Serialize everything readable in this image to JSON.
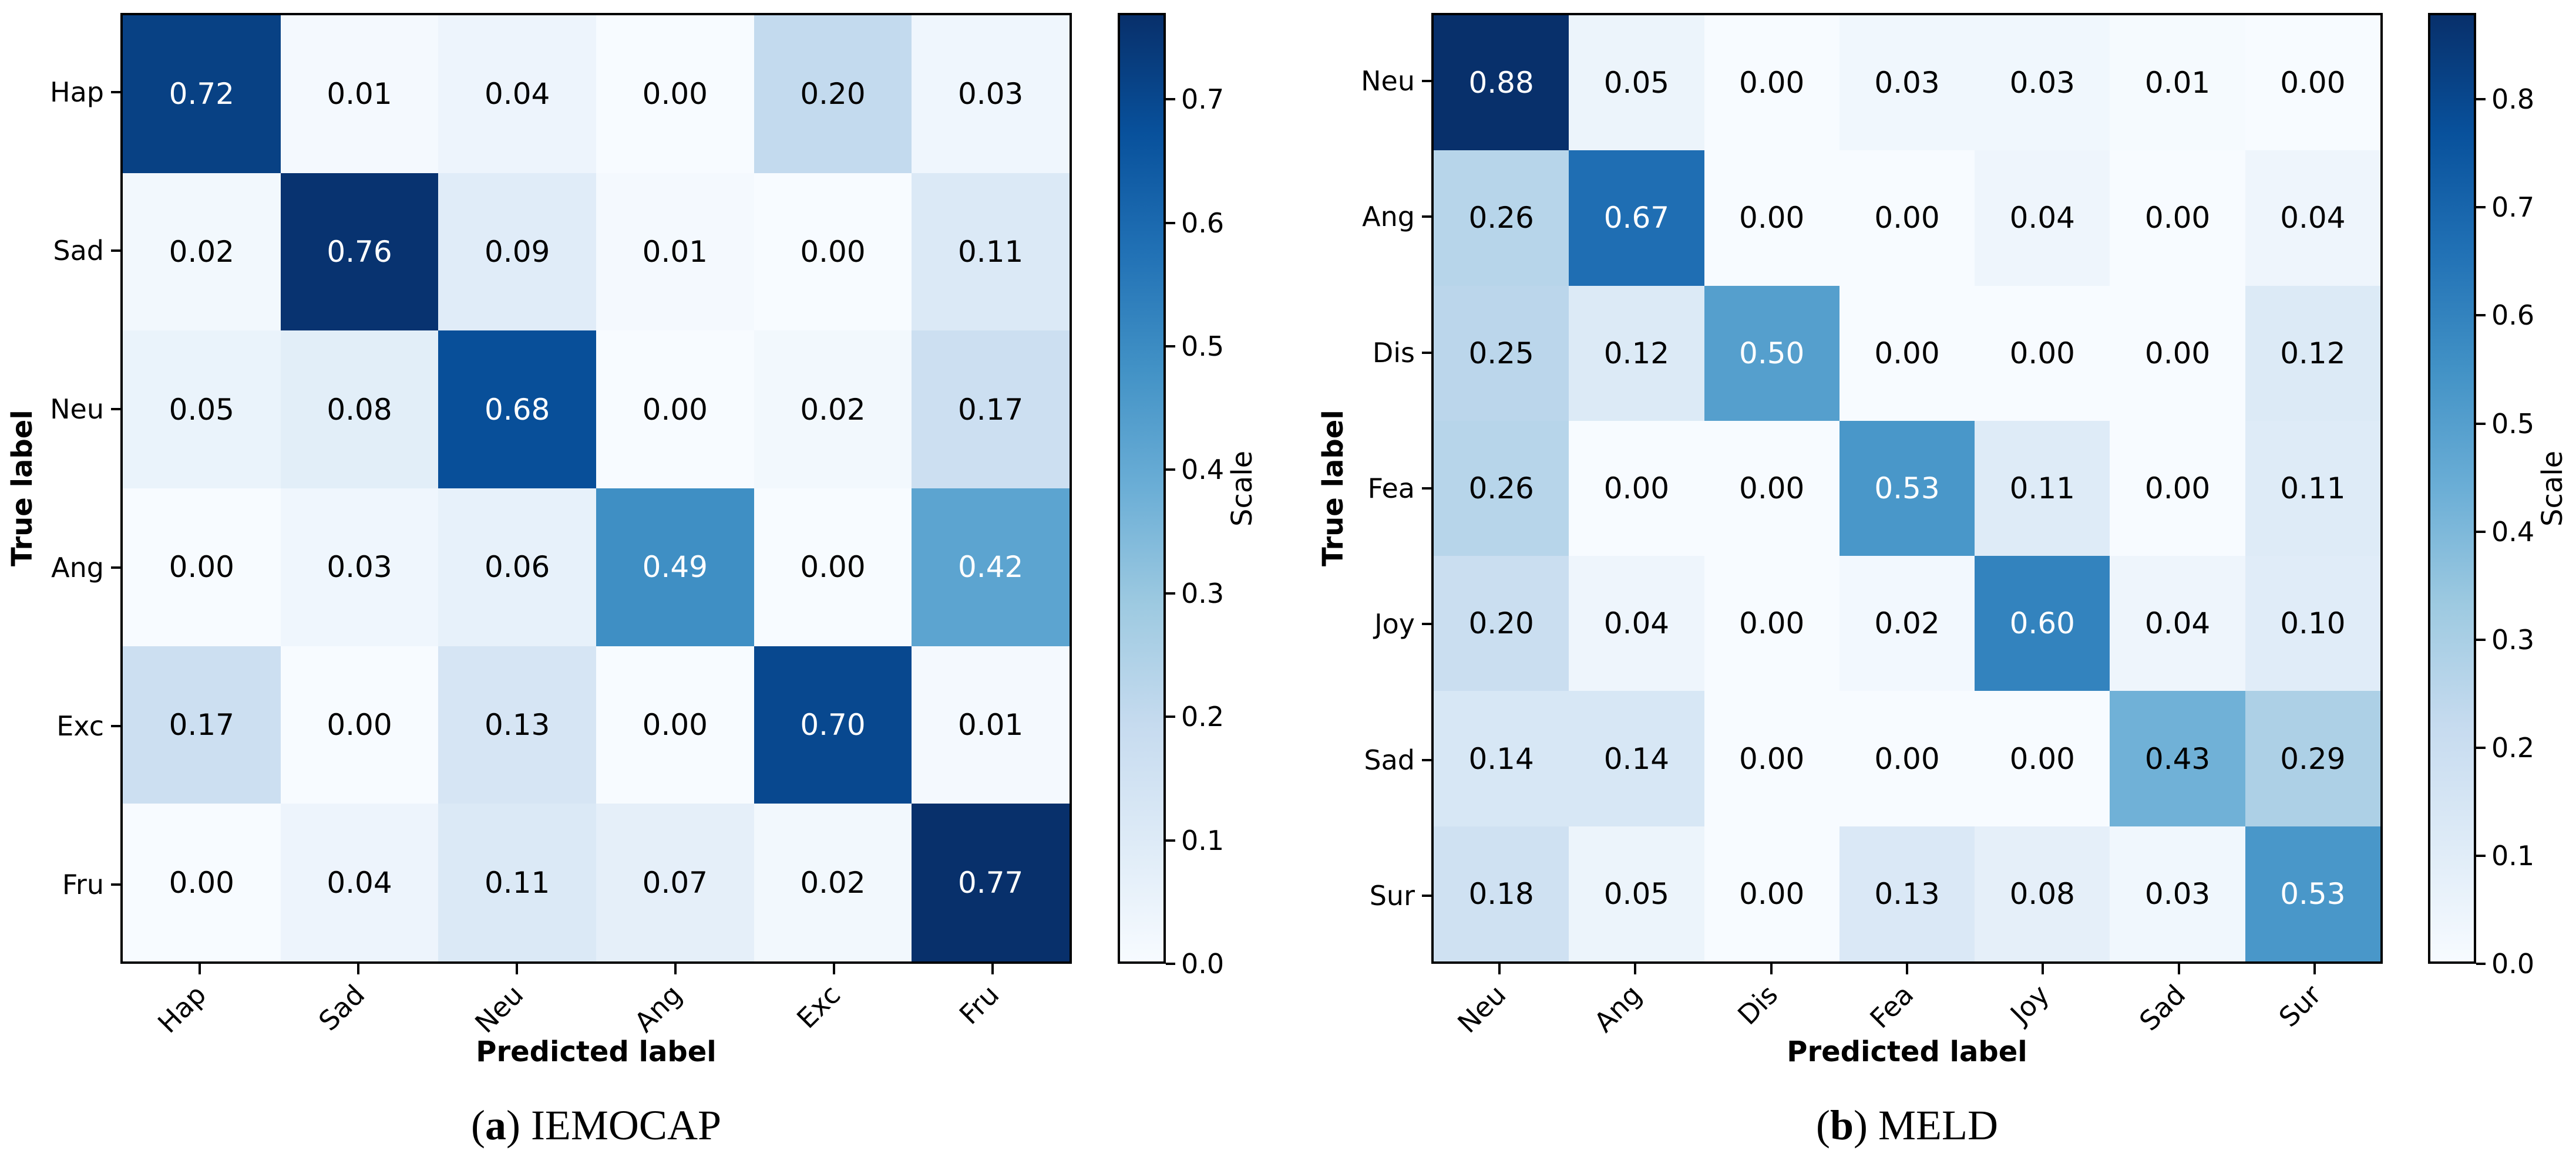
{
  "figure": {
    "background_color": "#ffffff",
    "text_color": "#000000",
    "colormap": {
      "name": "Blues",
      "anchors": [
        {
          "t": 0.0,
          "color": "#f7fbff"
        },
        {
          "t": 0.125,
          "color": "#deebf7"
        },
        {
          "t": 0.25,
          "color": "#c6dbef"
        },
        {
          "t": 0.375,
          "color": "#9ecae1"
        },
        {
          "t": 0.5,
          "color": "#6baed6"
        },
        {
          "t": 0.625,
          "color": "#4292c6"
        },
        {
          "t": 0.75,
          "color": "#2171b5"
        },
        {
          "t": 0.875,
          "color": "#08519c"
        },
        {
          "t": 1.0,
          "color": "#08306b"
        }
      ],
      "value_text_color_low": "#000000",
      "value_text_color_high": "#ffffff"
    }
  },
  "chart_data": [
    {
      "type": "heatmap",
      "subtype": "confusion-matrix",
      "caption": {
        "prefix": "(",
        "letter": "a",
        "suffix": ")",
        "title": "IEMOCAP"
      },
      "xlabel": "Predicted label",
      "ylabel": "True label",
      "colorbar_label": "Scale",
      "vmin": 0.0,
      "vmax": 0.77,
      "colorbar_ticks": [
        0.0,
        0.1,
        0.2,
        0.3,
        0.4,
        0.5,
        0.6,
        0.7
      ],
      "x_tick_labels": [
        "Hap",
        "Sad",
        "Neu",
        "Ang",
        "Exc",
        "Fru"
      ],
      "y_tick_labels": [
        "Hap",
        "Sad",
        "Neu",
        "Ang",
        "Exc",
        "Fru"
      ],
      "matrix": [
        [
          0.72,
          0.01,
          0.04,
          0.0,
          0.2,
          0.03
        ],
        [
          0.02,
          0.76,
          0.09,
          0.01,
          0.0,
          0.11
        ],
        [
          0.05,
          0.08,
          0.68,
          0.0,
          0.02,
          0.17
        ],
        [
          0.0,
          0.03,
          0.06,
          0.49,
          0.0,
          0.42
        ],
        [
          0.17,
          0.0,
          0.13,
          0.0,
          0.7,
          0.01
        ],
        [
          0.0,
          0.04,
          0.11,
          0.07,
          0.02,
          0.77
        ]
      ]
    },
    {
      "type": "heatmap",
      "subtype": "confusion-matrix",
      "caption": {
        "prefix": "(",
        "letter": "b",
        "suffix": ")",
        "title": "MELD"
      },
      "xlabel": "Predicted label",
      "ylabel": "True label",
      "colorbar_label": "Scale",
      "vmin": 0.0,
      "vmax": 0.88,
      "colorbar_ticks": [
        0.0,
        0.1,
        0.2,
        0.3,
        0.4,
        0.5,
        0.6,
        0.7,
        0.8
      ],
      "x_tick_labels": [
        "Neu",
        "Ang",
        "Dis",
        "Fea",
        "Joy",
        "Sad",
        "Sur"
      ],
      "y_tick_labels": [
        "Neu",
        "Ang",
        "Dis",
        "Fea",
        "Joy",
        "Sad",
        "Sur"
      ],
      "matrix": [
        [
          0.88,
          0.05,
          0.0,
          0.03,
          0.03,
          0.01,
          0.0
        ],
        [
          0.26,
          0.67,
          0.0,
          0.0,
          0.04,
          0.0,
          0.04
        ],
        [
          0.25,
          0.12,
          0.5,
          0.0,
          0.0,
          0.0,
          0.12
        ],
        [
          0.26,
          0.0,
          0.0,
          0.53,
          0.11,
          0.0,
          0.11
        ],
        [
          0.2,
          0.04,
          0.0,
          0.02,
          0.6,
          0.04,
          0.1
        ],
        [
          0.14,
          0.14,
          0.0,
          0.0,
          0.0,
          0.43,
          0.29
        ],
        [
          0.18,
          0.05,
          0.0,
          0.13,
          0.08,
          0.03,
          0.53
        ]
      ]
    }
  ]
}
